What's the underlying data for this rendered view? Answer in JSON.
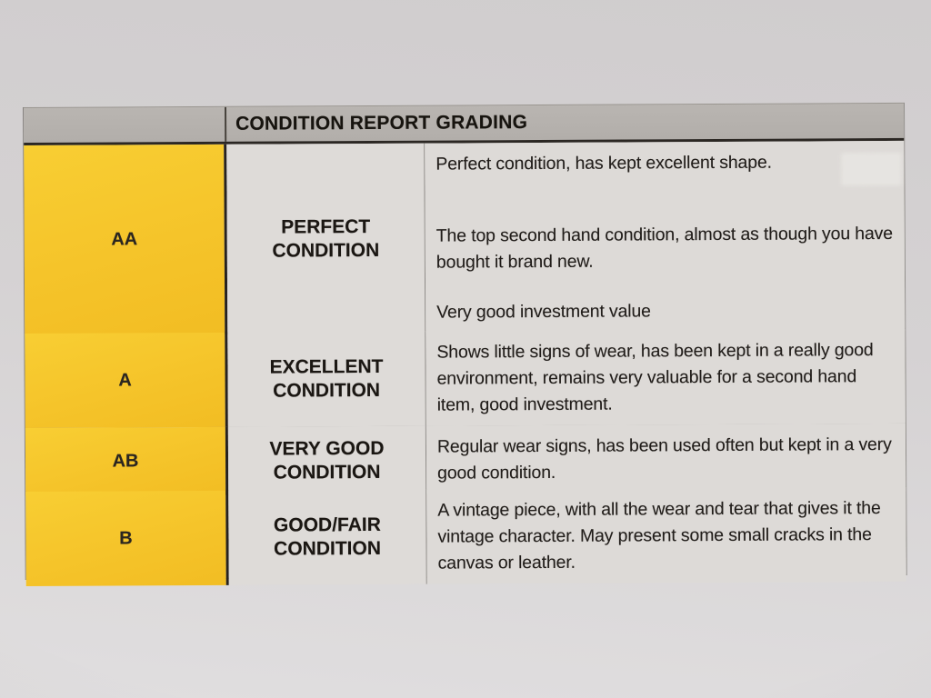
{
  "header": {
    "title": "CONDITION REPORT GRADING"
  },
  "table": {
    "rows": [
      {
        "grade": "AA",
        "label": "PERFECT\nCONDITION",
        "paragraphs": [
          "Perfect condition, has kept excellent shape.",
          "The top second hand condition, almost as though you have bought it brand new.",
          "Very good investment value"
        ]
      },
      {
        "grade": "A",
        "label": "EXCELLENT\nCONDITION",
        "paragraphs": [
          "Shows little signs of wear, has been kept in a really good environment, remains very valuable for a second hand item, good investment."
        ]
      },
      {
        "grade": "AB",
        "label": "VERY GOOD\nCONDITION",
        "paragraphs": [
          "Regular wear signs, has been used often but kept in a very good condition."
        ]
      },
      {
        "grade": "B",
        "label": "GOOD/FAIR\nCONDITION",
        "paragraphs": [
          "A vintage piece, with all the wear and tear that gives it the vintage character. May present some small cracks in the canvas or leather."
        ]
      }
    ]
  },
  "colors": {
    "grade_column_yellow": "#f5c42a",
    "header_bar_gray": "#b5b1ad",
    "cell_gray": "#dedbd8",
    "border_dark": "#2b2723",
    "text": "#211d1a"
  }
}
